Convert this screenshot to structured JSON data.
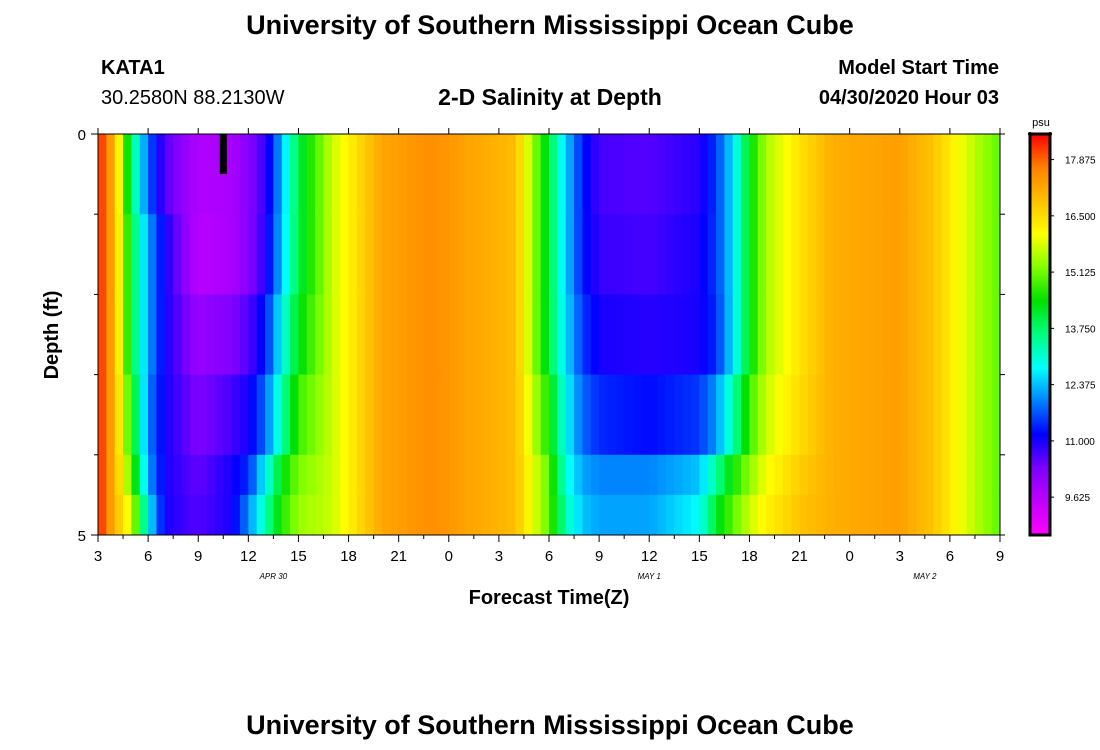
{
  "page": {
    "title_top": "University of Southern Mississippi Ocean Cube",
    "title_bottom": "University of Southern Mississippi Ocean Cube",
    "station_id": "KATA1",
    "station_coords": "30.2580N 88.2130W",
    "chart_title": "2-D Salinity at Depth",
    "model_label": "Model Start Time",
    "model_time": "04/30/2020 Hour 03"
  },
  "chart_data": {
    "type": "heatmap",
    "title": "2-D Salinity at Depth",
    "xlabel": "Forecast Time(Z)",
    "ylabel": "Depth (ft)",
    "x_tick_labels": [
      "3",
      "6",
      "9",
      "12",
      "15",
      "18",
      "21",
      "0",
      "3",
      "6",
      "9",
      "12",
      "15",
      "18",
      "21",
      "0",
      "3",
      "6",
      "9"
    ],
    "x_date_labels": [
      "APR 30",
      "MAY 1",
      "MAY 2"
    ],
    "x_range_hours": [
      0,
      54
    ],
    "y_tick_labels": [
      "0",
      "5"
    ],
    "ylim": [
      0,
      5
    ],
    "colorbar": {
      "unit": "psu",
      "tick_labels": [
        "17.875",
        "16.500",
        "15.125",
        "13.750",
        "12.375",
        "11.000",
        "9.625"
      ],
      "range": [
        8.7,
        18.5
      ],
      "colors": [
        "#ff00ff",
        "#c000ff",
        "#7d00ff",
        "#0000ff",
        "#0080ff",
        "#00ffff",
        "#00ff80",
        "#00e000",
        "#80ff00",
        "#ffff00",
        "#ffc000",
        "#ff8000",
        "#ff0000"
      ]
    },
    "depth_levels_ft": [
      0.0,
      1.0,
      2.0,
      3.0,
      4.0,
      4.5
    ],
    "salinity_profiles": [
      {
        "hour": 0,
        "values": [
          18.4,
          18.4,
          18.4,
          18.4,
          18.4,
          18.4
        ]
      },
      {
        "hour": 1,
        "values": [
          17.0,
          17.0,
          17.0,
          17.0,
          17.0,
          17.0
        ]
      },
      {
        "hour": 2,
        "values": [
          13.7,
          14.0,
          14.0,
          14.5,
          15.0,
          15.8
        ]
      },
      {
        "hour": 3,
        "values": [
          11.8,
          12.2,
          12.2,
          12.0,
          12.2,
          12.8
        ]
      },
      {
        "hour": 4,
        "values": [
          10.6,
          11.0,
          11.0,
          11.0,
          11.0,
          11.0
        ]
      },
      {
        "hour": 6,
        "values": [
          9.7,
          9.6,
          10.0,
          10.3,
          10.5,
          10.6
        ]
      },
      {
        "hour": 8,
        "values": [
          9.8,
          9.8,
          10.3,
          10.7,
          11.0,
          11.0
        ]
      },
      {
        "hour": 9,
        "values": [
          10.2,
          10.2,
          10.6,
          11.0,
          11.4,
          12.0
        ]
      },
      {
        "hour": 10,
        "values": [
          10.8,
          10.9,
          11.3,
          11.8,
          12.8,
          13.3
        ]
      },
      {
        "hour": 11,
        "values": [
          12.3,
          12.4,
          12.8,
          13.3,
          14.3,
          14.6
        ]
      },
      {
        "hour": 12,
        "values": [
          14.0,
          14.0,
          14.3,
          14.8,
          15.2,
          15.4
        ]
      },
      {
        "hour": 14,
        "values": [
          15.7,
          15.7,
          15.7,
          15.7,
          15.7,
          15.7
        ]
      },
      {
        "hour": 17,
        "values": [
          17.2,
          17.2,
          17.2,
          17.2,
          17.2,
          17.2
        ]
      },
      {
        "hour": 20,
        "values": [
          17.5,
          17.5,
          17.5,
          17.5,
          17.5,
          17.5
        ]
      },
      {
        "hour": 25,
        "values": [
          16.9,
          16.9,
          16.9,
          16.9,
          16.9,
          16.9
        ]
      },
      {
        "hour": 27,
        "values": [
          14.0,
          14.0,
          14.0,
          14.5,
          15.0,
          15.0
        ]
      },
      {
        "hour": 28,
        "values": [
          12.5,
          12.5,
          12.6,
          12.8,
          13.0,
          13.3
        ]
      },
      {
        "hour": 29,
        "values": [
          11.3,
          11.3,
          11.5,
          11.8,
          12.2,
          12.4
        ]
      },
      {
        "hour": 30,
        "values": [
          10.7,
          10.8,
          11.0,
          11.4,
          12.0,
          12.2
        ]
      },
      {
        "hour": 33,
        "values": [
          10.6,
          10.7,
          10.9,
          11.2,
          12.0,
          12.2
        ]
      },
      {
        "hour": 36,
        "values": [
          10.9,
          11.0,
          11.0,
          11.5,
          12.4,
          12.8
        ]
      },
      {
        "hour": 37,
        "values": [
          11.5,
          11.5,
          11.4,
          12.1,
          13.4,
          14.1
        ]
      },
      {
        "hour": 38,
        "values": [
          12.6,
          12.6,
          12.6,
          13.3,
          14.5,
          15.0
        ]
      },
      {
        "hour": 39,
        "values": [
          14.3,
          14.3,
          14.3,
          14.8,
          15.3,
          15.7
        ]
      },
      {
        "hour": 40,
        "values": [
          15.5,
          15.5,
          15.5,
          15.7,
          16.0,
          16.2
        ]
      },
      {
        "hour": 42,
        "values": [
          16.4,
          16.4,
          16.4,
          16.5,
          16.7,
          16.8
        ]
      },
      {
        "hour": 44,
        "values": [
          17.1,
          17.1,
          17.1,
          17.1,
          17.1,
          17.1
        ]
      },
      {
        "hour": 48,
        "values": [
          17.3,
          17.3,
          17.3,
          17.3,
          17.3,
          17.3
        ]
      },
      {
        "hour": 50,
        "values": [
          16.8,
          16.8,
          16.8,
          16.8,
          16.8,
          16.8
        ]
      },
      {
        "hour": 52,
        "values": [
          15.8,
          15.8,
          15.8,
          15.8,
          15.8,
          15.8
        ]
      },
      {
        "hour": 54,
        "values": [
          15.0,
          15.0,
          15.0,
          15.0,
          15.0,
          15.0
        ]
      }
    ],
    "marker": {
      "hour": 7.5,
      "depth_ft": [
        0,
        0.5
      ]
    }
  }
}
